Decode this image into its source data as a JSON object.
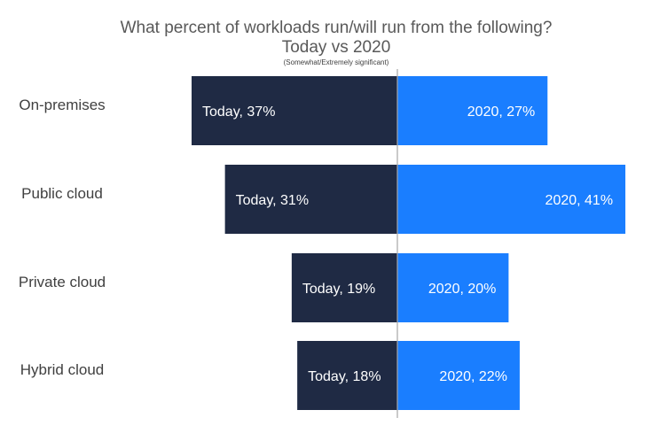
{
  "chart_data": {
    "type": "bar",
    "orientation": "horizontal-diverging",
    "title": "What percent of workloads run/will run from the following?",
    "title_line2": "Today vs 2020",
    "subtitle": "(Somewhat/Extremely significant)",
    "categories": [
      "On-premises",
      "Public cloud",
      "Private cloud",
      "Hybrid cloud"
    ],
    "series": [
      {
        "name": "Today",
        "color": "#1f2a44",
        "values": [
          37,
          31,
          19,
          18
        ],
        "labels": [
          "Today, 37%",
          "Today,  31%",
          "Today, 19%",
          "Today, 18%"
        ]
      },
      {
        "name": "2020",
        "color": "#1a7eff",
        "values": [
          27,
          41,
          20,
          22
        ],
        "labels": [
          "2020, 27%",
          "2020, 41%",
          "2020, 20%",
          "2020, 22%"
        ]
      }
    ],
    "xlim": [
      -41,
      41
    ],
    "grid": false,
    "legend": "none"
  }
}
